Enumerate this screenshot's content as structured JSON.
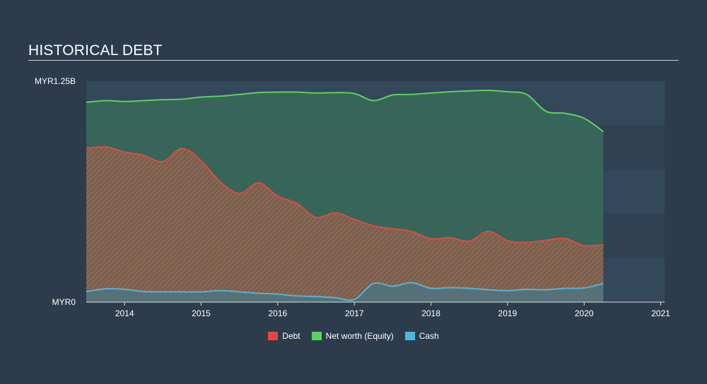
{
  "header": {
    "title": "HISTORICAL DEBT"
  },
  "chart_data": {
    "type": "area",
    "title": "HISTORICAL DEBT",
    "xlabel": "",
    "ylabel": "",
    "ylim": [
      0,
      1250000000
    ],
    "xlim": [
      2013.5,
      2021.05
    ],
    "x_ticks": [
      "2014",
      "2015",
      "2016",
      "2017",
      "2018",
      "2019",
      "2020",
      "2021"
    ],
    "y_tick_labels": [
      "MYR1.25B",
      "MYR0"
    ],
    "legend_position": "bottom-center",
    "grid": "horizontal bands",
    "series": [
      {
        "name": "Debt",
        "color": "#e8453c",
        "points": [
          [
            2013.5,
            870
          ],
          [
            2013.75,
            878
          ],
          [
            2014.0,
            850
          ],
          [
            2014.25,
            830
          ],
          [
            2014.5,
            795
          ],
          [
            2014.75,
            870
          ],
          [
            2015.0,
            800
          ],
          [
            2015.25,
            680
          ],
          [
            2015.5,
            615
          ],
          [
            2015.75,
            675
          ],
          [
            2016.0,
            600
          ],
          [
            2016.25,
            558
          ],
          [
            2016.5,
            480
          ],
          [
            2016.75,
            505
          ],
          [
            2017.0,
            468
          ],
          [
            2017.25,
            432
          ],
          [
            2017.5,
            415
          ],
          [
            2017.75,
            400
          ],
          [
            2018.0,
            358
          ],
          [
            2018.25,
            365
          ],
          [
            2018.5,
            345
          ],
          [
            2018.75,
            400
          ],
          [
            2019.0,
            348
          ],
          [
            2019.25,
            338
          ],
          [
            2019.5,
            350
          ],
          [
            2019.75,
            360
          ],
          [
            2020.0,
            320
          ],
          [
            2020.25,
            325
          ]
        ]
      },
      {
        "name": "Net worth (Equity)",
        "color": "#58d55a",
        "points": [
          [
            2013.5,
            1130
          ],
          [
            2013.75,
            1140
          ],
          [
            2014.0,
            1135
          ],
          [
            2014.25,
            1140
          ],
          [
            2014.5,
            1145
          ],
          [
            2014.75,
            1148
          ],
          [
            2015.0,
            1160
          ],
          [
            2015.25,
            1165
          ],
          [
            2015.5,
            1175
          ],
          [
            2015.75,
            1185
          ],
          [
            2016.0,
            1188
          ],
          [
            2016.25,
            1188
          ],
          [
            2016.5,
            1183
          ],
          [
            2016.75,
            1185
          ],
          [
            2017.0,
            1180
          ],
          [
            2017.25,
            1140
          ],
          [
            2017.5,
            1172
          ],
          [
            2017.75,
            1175
          ],
          [
            2018.0,
            1183
          ],
          [
            2018.25,
            1190
          ],
          [
            2018.5,
            1195
          ],
          [
            2018.75,
            1198
          ],
          [
            2019.0,
            1190
          ],
          [
            2019.25,
            1175
          ],
          [
            2019.5,
            1080
          ],
          [
            2019.75,
            1068
          ],
          [
            2020.0,
            1040
          ],
          [
            2020.25,
            965
          ]
        ]
      },
      {
        "name": "Cash",
        "color": "#4fb6df",
        "points": [
          [
            2013.5,
            60
          ],
          [
            2013.75,
            75
          ],
          [
            2014.0,
            72
          ],
          [
            2014.25,
            60
          ],
          [
            2014.5,
            58
          ],
          [
            2014.75,
            58
          ],
          [
            2015.0,
            58
          ],
          [
            2015.25,
            65
          ],
          [
            2015.5,
            58
          ],
          [
            2015.75,
            50
          ],
          [
            2016.0,
            45
          ],
          [
            2016.25,
            35
          ],
          [
            2016.5,
            32
          ],
          [
            2016.75,
            25
          ],
          [
            2017.0,
            15
          ],
          [
            2017.25,
            105
          ],
          [
            2017.5,
            90
          ],
          [
            2017.75,
            110
          ],
          [
            2018.0,
            78
          ],
          [
            2018.25,
            82
          ],
          [
            2018.5,
            78
          ],
          [
            2018.75,
            70
          ],
          [
            2019.0,
            65
          ],
          [
            2019.25,
            72
          ],
          [
            2019.5,
            70
          ],
          [
            2019.75,
            78
          ],
          [
            2020.0,
            80
          ],
          [
            2020.25,
            105
          ]
        ]
      }
    ]
  },
  "legend": {
    "items": [
      {
        "label": "Debt",
        "color": "#e8453c"
      },
      {
        "label": "Net worth (Equity)",
        "color": "#58d55a"
      },
      {
        "label": "Cash",
        "color": "#4fb6df"
      }
    ]
  }
}
